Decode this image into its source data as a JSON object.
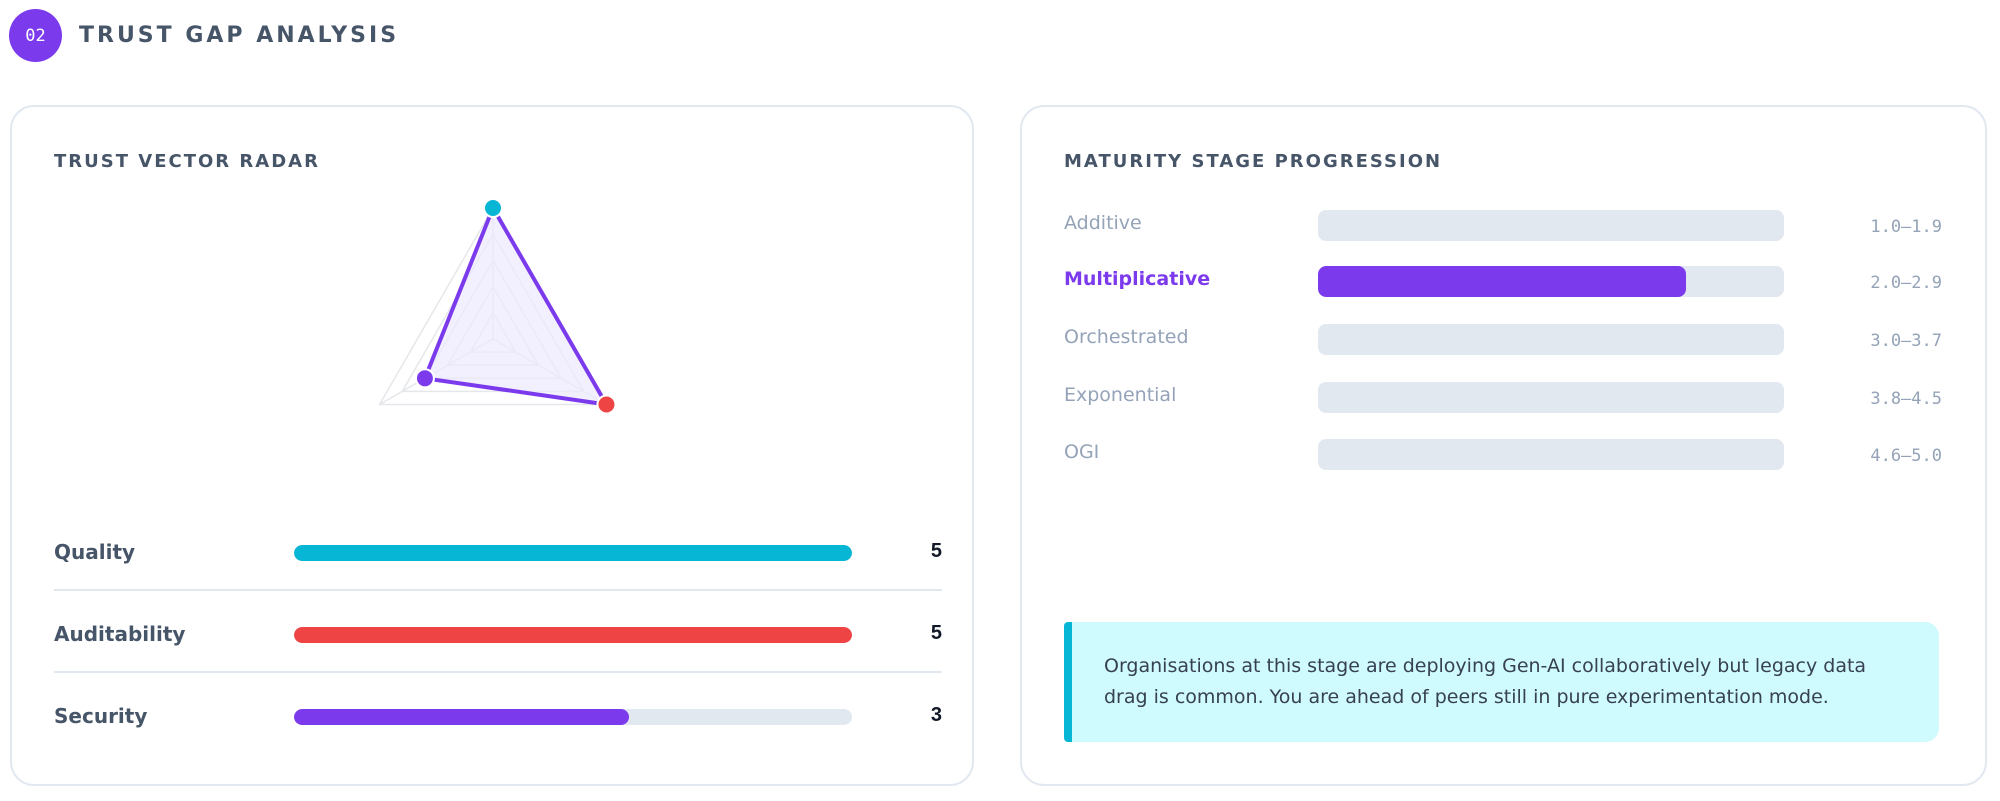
{
  "section": {
    "number": "02",
    "title": "TRUST GAP ANALYSIS"
  },
  "trust_vector": {
    "title": "TRUST VECTOR RADAR",
    "max_score": 5,
    "vectors": [
      {
        "label": "Quality",
        "score": 5,
        "color": "#06b6d4"
      },
      {
        "label": "Auditability",
        "score": 5,
        "color": "#ef4444"
      },
      {
        "label": "Security",
        "score": 3,
        "color": "#7c3aed"
      }
    ],
    "radar_colors": {
      "outline": "#7c3aed",
      "fill": "#ede9fe",
      "grid": "#e5e7eb"
    }
  },
  "maturity": {
    "title": "MATURITY STAGE PROGRESSION",
    "active_color": "#7c3aed",
    "stages": [
      {
        "label": "Additive",
        "range": "1.0–1.9",
        "fill": 0,
        "active": false
      },
      {
        "label": "Multiplicative",
        "range": "2.0–2.9",
        "fill": 0.79,
        "active": true
      },
      {
        "label": "Orchestrated",
        "range": "3.0–3.7",
        "fill": 0,
        "active": false
      },
      {
        "label": "Exponential",
        "range": "3.8–4.5",
        "fill": 0,
        "active": false
      },
      {
        "label": "OGI",
        "range": "4.6–5.0",
        "fill": 0,
        "active": false
      }
    ],
    "callout": "Organisations at this stage are deploying Gen-AI collaboratively but legacy data drag is common. You are ahead of peers still in pure experimentation mode."
  }
}
